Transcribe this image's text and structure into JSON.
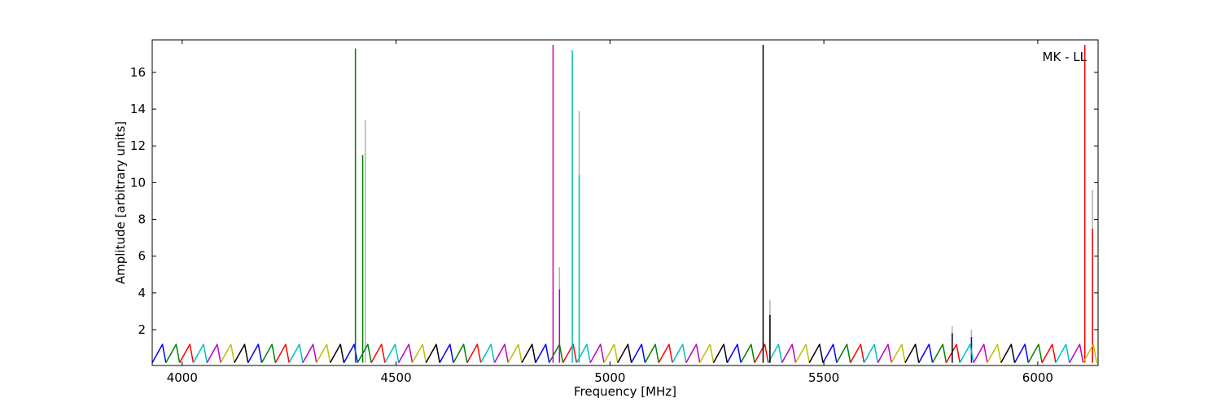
{
  "chart_data": {
    "type": "line",
    "xlabel": "Frequency [MHz]",
    "ylabel": "Amplitude [arbitrary units]",
    "annotation": "MK - LL",
    "xlim": [
      3930,
      6141
    ],
    "ylim": [
      0.05,
      17.77
    ],
    "xticks": [
      4000,
      4500,
      5000,
      5500,
      6000
    ],
    "yticks": [
      2,
      4,
      6,
      8,
      10,
      12,
      14,
      16
    ],
    "grid": false,
    "series": [
      {
        "color": "#b0b0b0",
        "x": [
          4428,
          4428,
          null,
          4882,
          4882,
          null,
          4928,
          4928,
          null,
          5374,
          5374,
          null,
          5800,
          5800,
          null,
          5845,
          5845,
          null,
          6128,
          6128
        ],
        "values": [
          0.2,
          13.4,
          null,
          0.2,
          5.4,
          null,
          0.2,
          13.9,
          null,
          0.2,
          3.6,
          null,
          0.2,
          2.2,
          null,
          0.2,
          2.0,
          null,
          0.2,
          9.6
        ]
      },
      {
        "color": "#0000ff",
        "x": [
          3930,
          3954,
          3962,
          null,
          4154,
          4178,
          4186,
          null,
          4378,
          4402,
          4410,
          null,
          4602,
          4626,
          4634,
          null,
          4826,
          4850,
          4858,
          null,
          5050,
          5074,
          5082,
          null,
          5274,
          5298,
          5306,
          null,
          5498,
          5522,
          5530,
          null,
          5722,
          5746,
          5754,
          null,
          5946,
          5970,
          5978,
          null,
          5845,
          5845
        ],
        "values": [
          0.2,
          1.2,
          0.2,
          null,
          0.2,
          1.2,
          0.2,
          null,
          0.2,
          1.2,
          0.2,
          null,
          0.2,
          1.2,
          0.2,
          null,
          0.2,
          1.2,
          0.2,
          null,
          0.2,
          1.2,
          0.2,
          null,
          0.2,
          1.2,
          0.2,
          null,
          0.2,
          1.2,
          0.2,
          null,
          0.2,
          1.2,
          0.2,
          null,
          0.2,
          1.2,
          0.2,
          null,
          0.2,
          1.6
        ]
      },
      {
        "color": "#008000",
        "x": [
          3962,
          3986,
          3994,
          null,
          4186,
          4210,
          4218,
          null,
          4410,
          4434,
          4442,
          null,
          4634,
          4658,
          4666,
          null,
          4858,
          4882,
          4890,
          null,
          5082,
          5106,
          5114,
          null,
          5306,
          5330,
          5338,
          null,
          5530,
          5554,
          5562,
          null,
          5754,
          5778,
          5786,
          null,
          5978,
          6002,
          6010,
          null,
          4405,
          4405,
          null,
          4422,
          4422
        ],
        "values": [
          0.2,
          1.2,
          0.2,
          null,
          0.2,
          1.2,
          0.2,
          null,
          0.2,
          1.2,
          0.2,
          null,
          0.2,
          1.2,
          0.2,
          null,
          0.2,
          1.2,
          0.2,
          null,
          0.2,
          1.2,
          0.2,
          null,
          0.2,
          1.2,
          0.2,
          null,
          0.2,
          1.2,
          0.2,
          null,
          0.2,
          1.2,
          0.2,
          null,
          0.2,
          1.2,
          0.2,
          null,
          0.2,
          17.3,
          null,
          0.2,
          11.5
        ]
      },
      {
        "color": "#ff0000",
        "x": [
          3994,
          4018,
          4026,
          null,
          4218,
          4242,
          4250,
          null,
          4442,
          4466,
          4474,
          null,
          4666,
          4690,
          4698,
          null,
          4890,
          4914,
          4922,
          null,
          5114,
          5138,
          5146,
          null,
          5338,
          5362,
          5370,
          null,
          5562,
          5586,
          5594,
          null,
          5786,
          5810,
          5818,
          null,
          6010,
          6034,
          6042,
          null,
          6110,
          6110,
          null,
          6128,
          6128
        ],
        "values": [
          0.2,
          1.2,
          0.2,
          null,
          0.2,
          1.2,
          0.2,
          null,
          0.2,
          1.2,
          0.2,
          null,
          0.2,
          1.2,
          0.2,
          null,
          0.2,
          1.2,
          0.2,
          null,
          0.2,
          1.2,
          0.2,
          null,
          0.2,
          1.2,
          0.2,
          null,
          0.2,
          1.2,
          0.2,
          null,
          0.2,
          1.2,
          0.2,
          null,
          0.2,
          1.2,
          0.2,
          null,
          0.2,
          17.5,
          null,
          0.2,
          7.5
        ]
      },
      {
        "color": "#00bfbf",
        "x": [
          4026,
          4050,
          4058,
          null,
          4250,
          4274,
          4282,
          null,
          4474,
          4498,
          4506,
          null,
          4698,
          4722,
          4730,
          null,
          4922,
          4946,
          4954,
          null,
          5146,
          5170,
          5178,
          null,
          5370,
          5394,
          5402,
          null,
          5594,
          5618,
          5626,
          null,
          5818,
          5842,
          5850,
          null,
          6042,
          6066,
          6074,
          null,
          4912,
          4912,
          null,
          4928,
          4928
        ],
        "values": [
          0.2,
          1.2,
          0.2,
          null,
          0.2,
          1.2,
          0.2,
          null,
          0.2,
          1.2,
          0.2,
          null,
          0.2,
          1.2,
          0.2,
          null,
          0.2,
          1.2,
          0.2,
          null,
          0.2,
          1.2,
          0.2,
          null,
          0.2,
          1.2,
          0.2,
          null,
          0.2,
          1.2,
          0.2,
          null,
          0.2,
          1.2,
          0.2,
          null,
          0.2,
          1.2,
          0.2,
          null,
          0.2,
          17.2,
          null,
          0.2,
          10.4
        ]
      },
      {
        "color": "#bf00bf",
        "x": [
          4058,
          4082,
          4090,
          null,
          4282,
          4306,
          4314,
          null,
          4506,
          4530,
          4538,
          null,
          4730,
          4754,
          4762,
          null,
          4954,
          4978,
          4986,
          null,
          5178,
          5202,
          5210,
          null,
          5402,
          5426,
          5434,
          null,
          5626,
          5650,
          5658,
          null,
          5850,
          5874,
          5882,
          null,
          6074,
          6098,
          6106,
          null,
          4867,
          4867,
          null,
          4882,
          4882
        ],
        "values": [
          0.2,
          1.2,
          0.2,
          null,
          0.2,
          1.2,
          0.2,
          null,
          0.2,
          1.2,
          0.2,
          null,
          0.2,
          1.2,
          0.2,
          null,
          0.2,
          1.2,
          0.2,
          null,
          0.2,
          1.2,
          0.2,
          null,
          0.2,
          1.2,
          0.2,
          null,
          0.2,
          1.2,
          0.2,
          null,
          0.2,
          1.2,
          0.2,
          null,
          0.2,
          1.2,
          0.2,
          null,
          0.2,
          17.5,
          null,
          0.2,
          4.2
        ]
      },
      {
        "color": "#bfbf00",
        "x": [
          4090,
          4114,
          4122,
          null,
          4314,
          4338,
          4346,
          null,
          4538,
          4562,
          4570,
          null,
          4762,
          4786,
          4794,
          null,
          4986,
          5010,
          5018,
          null,
          5210,
          5234,
          5242,
          null,
          5434,
          5458,
          5466,
          null,
          5658,
          5682,
          5690,
          null,
          5882,
          5906,
          5914,
          null,
          6106,
          6130,
          6138
        ],
        "values": [
          0.2,
          1.2,
          0.2,
          null,
          0.2,
          1.2,
          0.2,
          null,
          0.2,
          1.2,
          0.2,
          null,
          0.2,
          1.2,
          0.2,
          null,
          0.2,
          1.2,
          0.2,
          null,
          0.2,
          1.2,
          0.2,
          null,
          0.2,
          1.2,
          0.2,
          null,
          0.2,
          1.2,
          0.2,
          null,
          0.2,
          1.2,
          0.2,
          null,
          0.2,
          1.2,
          0.2
        ]
      },
      {
        "color": "#000000",
        "x": [
          4122,
          4146,
          4154,
          null,
          4346,
          4370,
          4378,
          null,
          4570,
          4594,
          4602,
          null,
          4794,
          4818,
          4826,
          null,
          5018,
          5042,
          5050,
          null,
          5242,
          5266,
          5274,
          null,
          5466,
          5490,
          5498,
          null,
          5690,
          5714,
          5722,
          null,
          5914,
          5938,
          5946,
          null,
          5358,
          5358,
          null,
          5374,
          5374,
          null,
          5800,
          5800
        ],
        "values": [
          0.2,
          1.2,
          0.2,
          null,
          0.2,
          1.2,
          0.2,
          null,
          0.2,
          1.2,
          0.2,
          null,
          0.2,
          1.2,
          0.2,
          null,
          0.2,
          1.2,
          0.2,
          null,
          0.2,
          1.2,
          0.2,
          null,
          0.2,
          1.2,
          0.2,
          null,
          0.2,
          1.2,
          0.2,
          null,
          0.2,
          1.2,
          0.2,
          null,
          0.2,
          17.5,
          null,
          0.2,
          2.8,
          null,
          0.2,
          1.8
        ]
      }
    ]
  }
}
